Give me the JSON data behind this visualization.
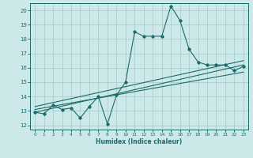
{
  "title": "",
  "xlabel": "Humidex (Indice chaleur)",
  "ylabel": "",
  "bg_color": "#cce8e8",
  "grid_color": "#aacece",
  "line_color": "#1a6b6b",
  "xlim": [
    -0.5,
    23.5
  ],
  "ylim": [
    11.7,
    20.5
  ],
  "xticks": [
    0,
    1,
    2,
    3,
    4,
    5,
    6,
    7,
    8,
    9,
    10,
    11,
    12,
    13,
    14,
    15,
    16,
    17,
    18,
    19,
    20,
    21,
    22,
    23
  ],
  "yticks": [
    12,
    13,
    14,
    15,
    16,
    17,
    18,
    19,
    20
  ],
  "main_x": [
    0,
    1,
    2,
    3,
    4,
    5,
    6,
    7,
    8,
    9,
    10,
    11,
    12,
    13,
    14,
    15,
    16,
    17,
    18,
    19,
    20,
    21,
    22,
    23
  ],
  "main_y": [
    12.9,
    12.8,
    13.4,
    13.1,
    13.2,
    12.5,
    13.3,
    14.0,
    12.1,
    14.1,
    15.0,
    18.5,
    18.2,
    18.2,
    18.2,
    20.3,
    19.3,
    17.3,
    16.4,
    16.2,
    16.2,
    16.2,
    15.8,
    16.1
  ],
  "trend1_x": [
    0,
    23
  ],
  "trend1_y": [
    12.9,
    16.2
  ],
  "trend2_x": [
    0,
    23
  ],
  "trend2_y": [
    13.1,
    15.7
  ],
  "trend3_x": [
    0,
    23
  ],
  "trend3_y": [
    13.3,
    16.5
  ],
  "marker": "D",
  "marker_size": 1.8,
  "line_width": 0.8,
  "trend_lw": 0.8
}
